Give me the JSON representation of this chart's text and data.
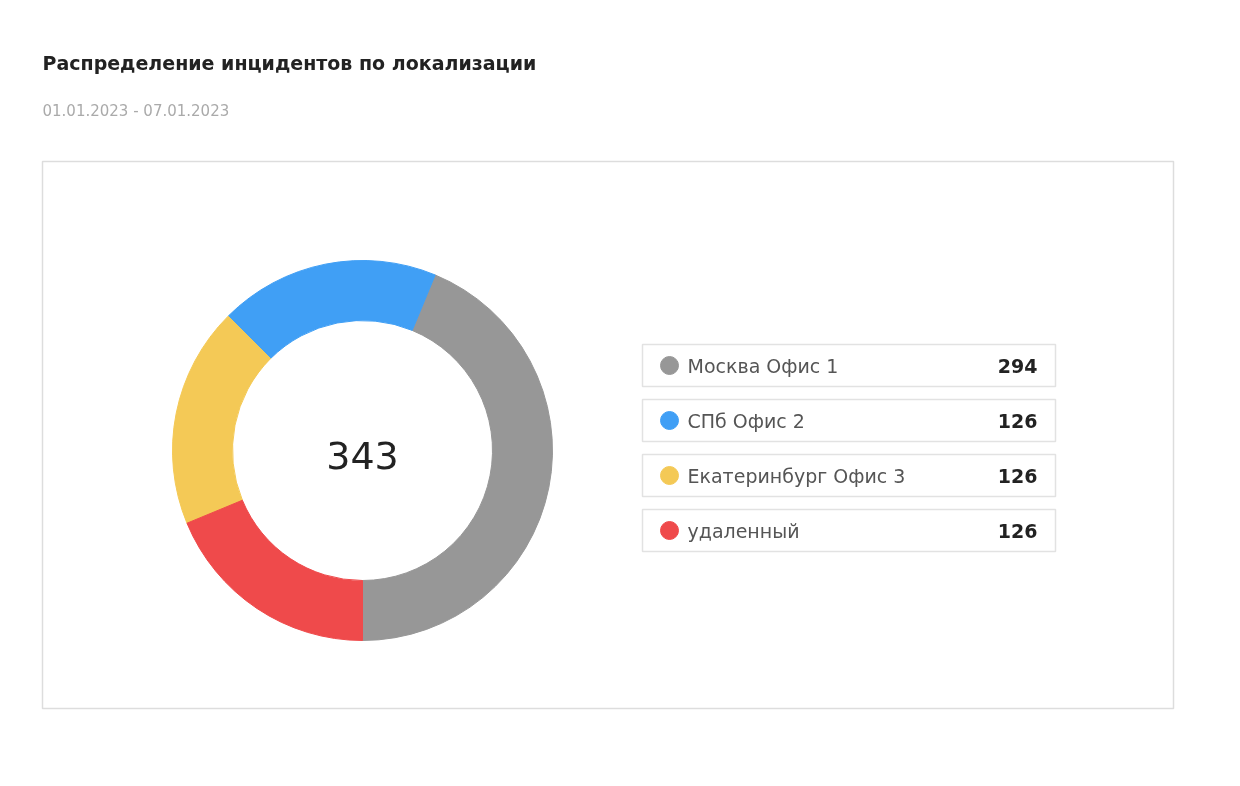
{
  "chart_data": {
    "type": "donut",
    "title": "Распределение инцидентов по локализации",
    "subtitle": "01.01.2023 - 07.01.2023",
    "categories": [
      "Москва Офис 1",
      "СПб Офис 2",
      "Екатеринбург Офис 3",
      "удаленный"
    ],
    "values": [
      294,
      126,
      126,
      126
    ],
    "colors": [
      "#979797",
      "#409ff5",
      "#f4c956",
      "#ef4a4b"
    ],
    "annotations": [
      "343"
    ],
    "data_labels": true,
    "legend": "right"
  }
}
